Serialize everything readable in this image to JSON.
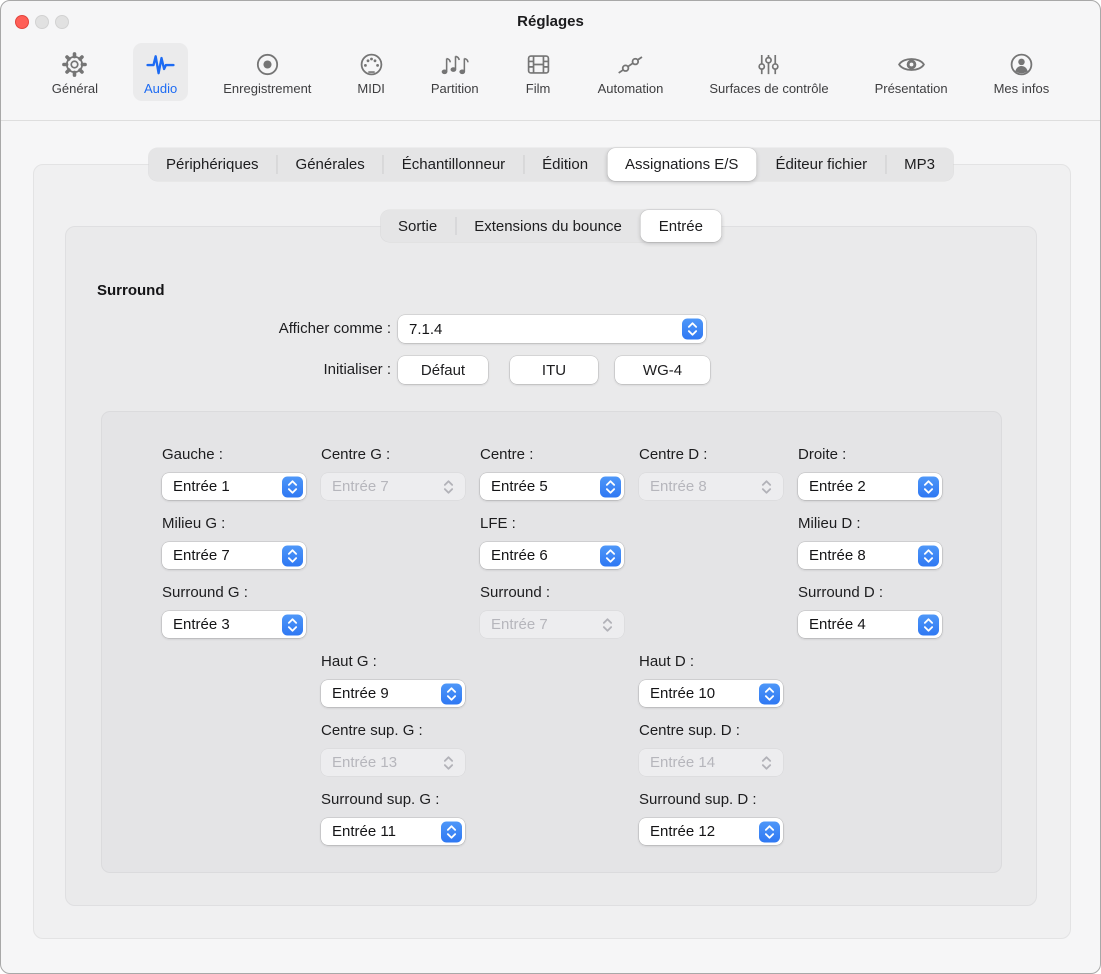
{
  "window": {
    "title": "Réglages"
  },
  "toolbar": {
    "items": [
      {
        "key": "general",
        "label": "Général",
        "icon": "gear-icon",
        "active": false
      },
      {
        "key": "audio",
        "label": "Audio",
        "icon": "audio-waveform-icon",
        "active": true
      },
      {
        "key": "enregistrement",
        "label": "Enregistrement",
        "icon": "record-icon",
        "active": false
      },
      {
        "key": "midi",
        "label": "MIDI",
        "icon": "midi-connector-icon",
        "active": false
      },
      {
        "key": "partition",
        "label": "Partition",
        "icon": "music-notes-icon",
        "active": false
      },
      {
        "key": "film",
        "label": "Film",
        "icon": "film-strip-icon",
        "active": false
      },
      {
        "key": "automation",
        "label": "Automation",
        "icon": "automation-nodes-icon",
        "active": false
      },
      {
        "key": "surfaces-de-controle",
        "label": "Surfaces de contrôle",
        "icon": "sliders-icon",
        "active": false
      },
      {
        "key": "presentation",
        "label": "Présentation",
        "icon": "eye-icon",
        "active": false
      },
      {
        "key": "mes-infos",
        "label": "Mes infos",
        "icon": "person-icon",
        "active": false
      }
    ]
  },
  "tabs": {
    "active": "Assignations E/S",
    "items": [
      "Périphériques",
      "Générales",
      "Échantillonneur",
      "Édition",
      "Assignations E/S",
      "Éditeur fichier",
      "MP3"
    ]
  },
  "subtabs": {
    "active": "Entrée",
    "items": [
      "Sortie",
      "Extensions du bounce",
      "Entrée"
    ]
  },
  "surround": {
    "heading": "Surround",
    "display_label": "Afficher comme :",
    "display_value": "7.1.4",
    "init_label": "Initialiser :",
    "init_buttons": [
      "Défaut",
      "ITU",
      "WG-4"
    ],
    "channels": [
      {
        "key": "gauche",
        "label": "Gauche :",
        "value": "Entrée 1",
        "enabled": true,
        "col": 1,
        "row": 1
      },
      {
        "key": "centre-g",
        "label": "Centre G :",
        "value": "Entrée 7",
        "enabled": false,
        "col": 2,
        "row": 1
      },
      {
        "key": "centre",
        "label": "Centre :",
        "value": "Entrée 5",
        "enabled": true,
        "col": 3,
        "row": 1
      },
      {
        "key": "centre-d",
        "label": "Centre D :",
        "value": "Entrée 8",
        "enabled": false,
        "col": 4,
        "row": 1
      },
      {
        "key": "droite",
        "label": "Droite :",
        "value": "Entrée 2",
        "enabled": true,
        "col": 5,
        "row": 1
      },
      {
        "key": "milieu-g",
        "label": "Milieu G :",
        "value": "Entrée 7",
        "enabled": true,
        "col": 1,
        "row": 2
      },
      {
        "key": "lfe",
        "label": "LFE :",
        "value": "Entrée 6",
        "enabled": true,
        "col": 3,
        "row": 2
      },
      {
        "key": "milieu-d",
        "label": "Milieu D :",
        "value": "Entrée 8",
        "enabled": true,
        "col": 5,
        "row": 2
      },
      {
        "key": "surround-g",
        "label": "Surround G :",
        "value": "Entrée 3",
        "enabled": true,
        "col": 1,
        "row": 3
      },
      {
        "key": "surround",
        "label": "Surround :",
        "value": "Entrée 7",
        "enabled": false,
        "col": 3,
        "row": 3
      },
      {
        "key": "surround-d",
        "label": "Surround D :",
        "value": "Entrée 4",
        "enabled": true,
        "col": 5,
        "row": 3
      },
      {
        "key": "haut-g",
        "label": "Haut G :",
        "value": "Entrée 9",
        "enabled": true,
        "col": 2,
        "row": 4
      },
      {
        "key": "haut-d",
        "label": "Haut D :",
        "value": "Entrée 10",
        "enabled": true,
        "col": 4,
        "row": 4
      },
      {
        "key": "centre-sup-g",
        "label": "Centre sup. G :",
        "value": "Entrée 13",
        "enabled": false,
        "col": 2,
        "row": 5
      },
      {
        "key": "centre-sup-d",
        "label": "Centre sup. D :",
        "value": "Entrée 14",
        "enabled": false,
        "col": 4,
        "row": 5
      },
      {
        "key": "surround-sup-g",
        "label": "Surround sup. G :",
        "value": "Entrée 11",
        "enabled": true,
        "col": 2,
        "row": 6
      },
      {
        "key": "surround-sup-d",
        "label": "Surround sup. D :",
        "value": "Entrée 12",
        "enabled": true,
        "col": 4,
        "row": 6
      }
    ]
  },
  "colors": {
    "accent_blue": "#1d6bf3",
    "popup_cap_blue": "#3478f6",
    "traffic_red": "#ff5f57",
    "disabled_text": "#b6b6bc"
  }
}
